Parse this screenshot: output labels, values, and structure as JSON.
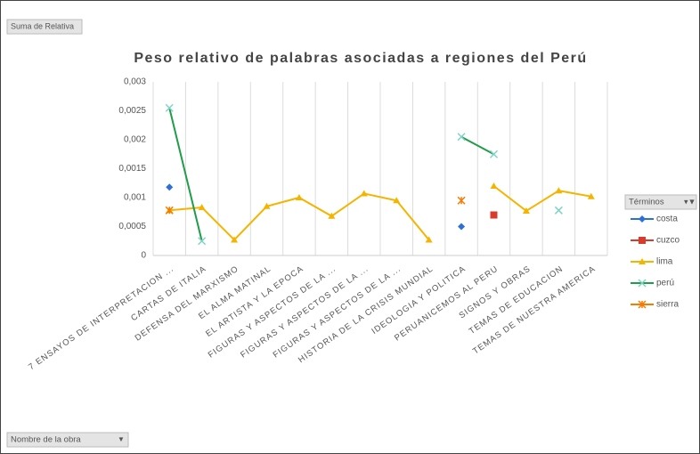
{
  "chart_data": {
    "type": "line",
    "title": "Peso relativo de palabras asociadas a regiones del Perú",
    "value_field": "Suma de Relativa",
    "legend_title": "Términos",
    "axis_field": "Nombre de la obra",
    "categories": [
      "7 ENSAYOS DE INTERPRETACION ...",
      "CARTAS DE ITALIA",
      "DEFENSA DEL MARXISMO",
      "EL ALMA MATINAL",
      "EL ARTISTA Y LA EPOCA",
      "FIGURAS Y ASPECTOS DE LA ...",
      "FIGURAS Y ASPECTOS DE LA ...",
      "FIGURAS Y ASPECTOS DE LA ...",
      "HISTORIA DE LA CRISIS MUNDIAL",
      "IDEOLOGIA Y POLITICA",
      "PERUANICEMOS AL PERU",
      "SIGNOS Y OBRAS",
      "TEMAS DE EDUCACION",
      "TEMAS DE NUESTRA AMERICA"
    ],
    "series": [
      {
        "name": "costa",
        "color": "#2f6fd8",
        "values": [
          0.00118,
          null,
          null,
          null,
          null,
          null,
          null,
          null,
          null,
          0.0005,
          null,
          null,
          null,
          null
        ]
      },
      {
        "name": "cuzco",
        "color": "#d93a2b",
        "values": [
          null,
          null,
          null,
          null,
          null,
          null,
          null,
          null,
          null,
          null,
          0.0007,
          null,
          null,
          null
        ]
      },
      {
        "name": "lima",
        "color": "#f4b400",
        "values": [
          0.00078,
          0.00083,
          0.00027,
          0.00085,
          0.001,
          0.00068,
          0.00107,
          0.00095,
          0.00027,
          null,
          0.0012,
          0.00077,
          0.00112,
          0.00102
        ]
      },
      {
        "name": "perú",
        "color": "#1f9d48",
        "values": [
          0.00255,
          0.00025,
          null,
          null,
          null,
          null,
          null,
          null,
          null,
          0.00205,
          0.00175,
          null,
          0.00078,
          null
        ]
      },
      {
        "name": "sierra",
        "color": "#f57c00",
        "values": [
          0.00078,
          null,
          null,
          null,
          null,
          null,
          null,
          null,
          null,
          0.00095,
          null,
          null,
          null,
          null
        ]
      }
    ],
    "ylim": [
      0,
      0.003
    ],
    "yticks": [
      0,
      {
        "value": 0.0005,
        "label": "0,0005"
      },
      {
        "value": 0.001,
        "label": "0,001"
      },
      {
        "value": 0.0015,
        "label": "0,0015"
      },
      {
        "value": 0.002,
        "label": "0,002"
      },
      {
        "value": 0.0025,
        "label": "0,0025"
      },
      {
        "value": 0.003,
        "label": "0,003"
      }
    ],
    "grid": true
  }
}
